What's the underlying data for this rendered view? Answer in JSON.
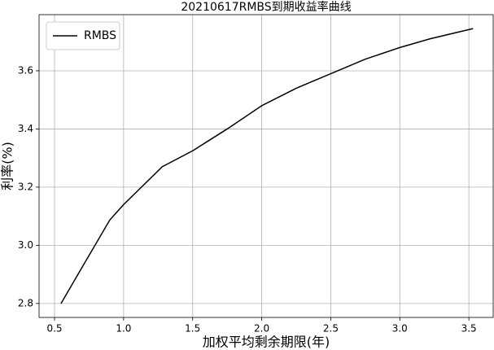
{
  "chart_data": {
    "type": "line",
    "title": "20210617RMBS到期收益率曲线",
    "xlabel": "加权平均剩余期限(年)",
    "ylabel": "利率(%)",
    "x": [
      0.547,
      0.694,
      0.9,
      1.0,
      1.28,
      1.5,
      1.75,
      2.0,
      2.25,
      2.5,
      2.75,
      3.0,
      3.22,
      3.53
    ],
    "series": [
      {
        "name": "RMBS",
        "color": "#000000",
        "values": [
          2.8,
          2.92,
          3.087,
          3.14,
          3.27,
          3.325,
          3.4,
          3.48,
          3.54,
          3.59,
          3.64,
          3.68,
          3.71,
          3.745
        ]
      }
    ],
    "xlim": [
      0.388,
      3.676
    ],
    "ylim": [
      2.752,
      3.793
    ],
    "xticks": [
      0.5,
      {
        "value": 1,
        "label": "1.0"
      },
      1.5,
      {
        "value": 2,
        "label": "2.0"
      },
      2.5,
      {
        "value": 3,
        "label": "3.0"
      },
      3.5
    ],
    "yticks": [
      2.8,
      {
        "value": 3,
        "label": "3.0"
      },
      3.2,
      3.4,
      3.6
    ],
    "grid": true,
    "legend": "upper left"
  }
}
